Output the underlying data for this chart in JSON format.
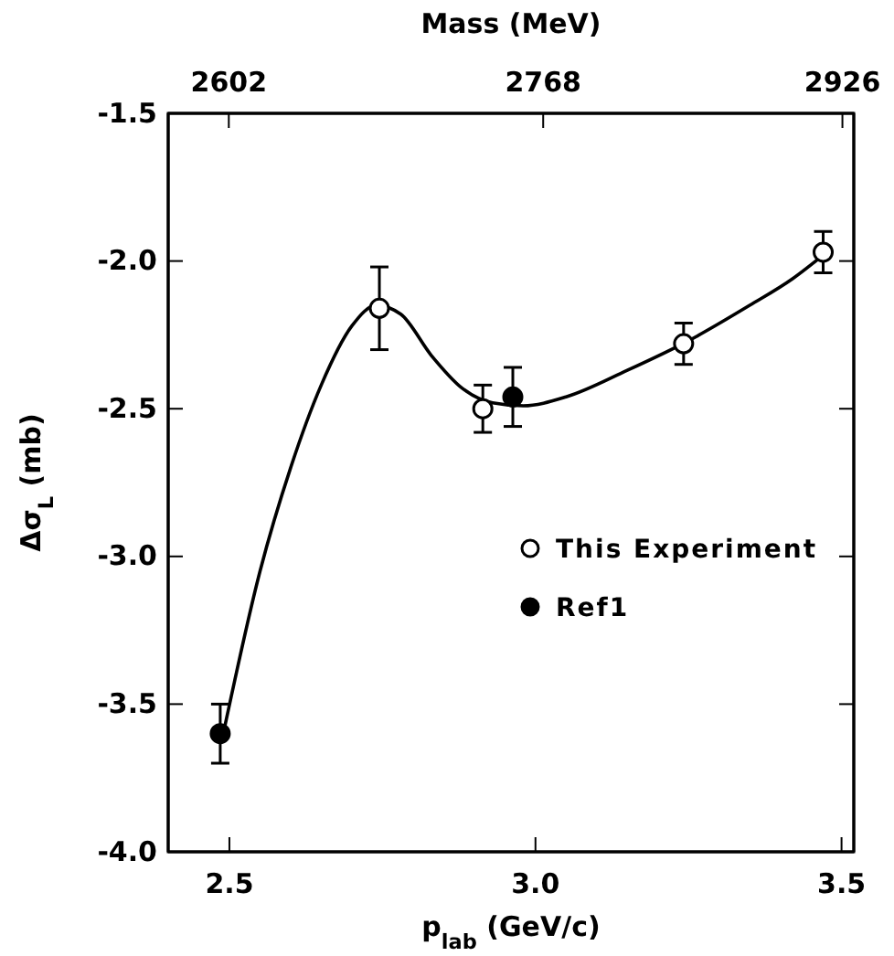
{
  "chart_data": {
    "type": "scatter",
    "xlabel": "p$_{lab}$ (GeV/c)",
    "ylabel": "Δσ$_{L}$ (mb)",
    "x2label": "Mass (MeV)",
    "xlim": [
      2.4,
      3.52
    ],
    "xticks": [
      {
        "value": 2.5,
        "label": "2.5"
      },
      {
        "value": 3.0,
        "label": "3.0"
      },
      {
        "value": 3.5,
        "label": "3.5"
      }
    ],
    "x2lim": [
      2570,
      2932
    ],
    "x2ticks": [
      2602,
      2768,
      2926
    ],
    "ylim": [
      -4.0,
      -1.5
    ],
    "yticks": [
      {
        "value": -4.0,
        "label": "-4.0"
      },
      {
        "value": -3.5,
        "label": "-3.5"
      },
      {
        "value": -3.0,
        "label": "-3.0"
      },
      {
        "value": -2.5,
        "label": "-2.5"
      },
      {
        "value": -2.0,
        "label": "-2.0"
      },
      {
        "value": -1.5,
        "label": "-1.5"
      }
    ],
    "grid": false,
    "legend": "right",
    "marker": "circle",
    "series": [
      {
        "type": "line",
        "color": "#000000",
        "marker": "none",
        "line_style": "solid",
        "x": [
          2.49,
          2.55,
          2.6,
          2.65,
          2.7,
          2.74,
          2.78,
          2.83,
          2.88,
          2.93,
          2.98,
          3.05,
          3.15,
          3.25,
          3.35,
          3.42,
          3.47
        ],
        "values": [
          -3.6,
          -3.05,
          -2.7,
          -2.42,
          -2.22,
          -2.15,
          -2.18,
          -2.32,
          -2.43,
          -2.48,
          -2.49,
          -2.46,
          -2.37,
          -2.27,
          -2.15,
          -2.06,
          -1.98
        ]
      },
      {
        "name": "This Experiment",
        "color": "#ffffff",
        "x": [
          2.745,
          2.914,
          3.242,
          3.47
        ],
        "values": [
          -2.16,
          -2.5,
          -2.28,
          -1.97
        ],
        "errors": [
          0.14,
          0.08,
          0.07,
          0.07
        ]
      },
      {
        "name": "Ref1",
        "color": "#000000",
        "x": [
          2.485,
          2.963
        ],
        "values": [
          -3.6,
          -2.46
        ],
        "errors": [
          0.1,
          0.1
        ]
      }
    ]
  }
}
